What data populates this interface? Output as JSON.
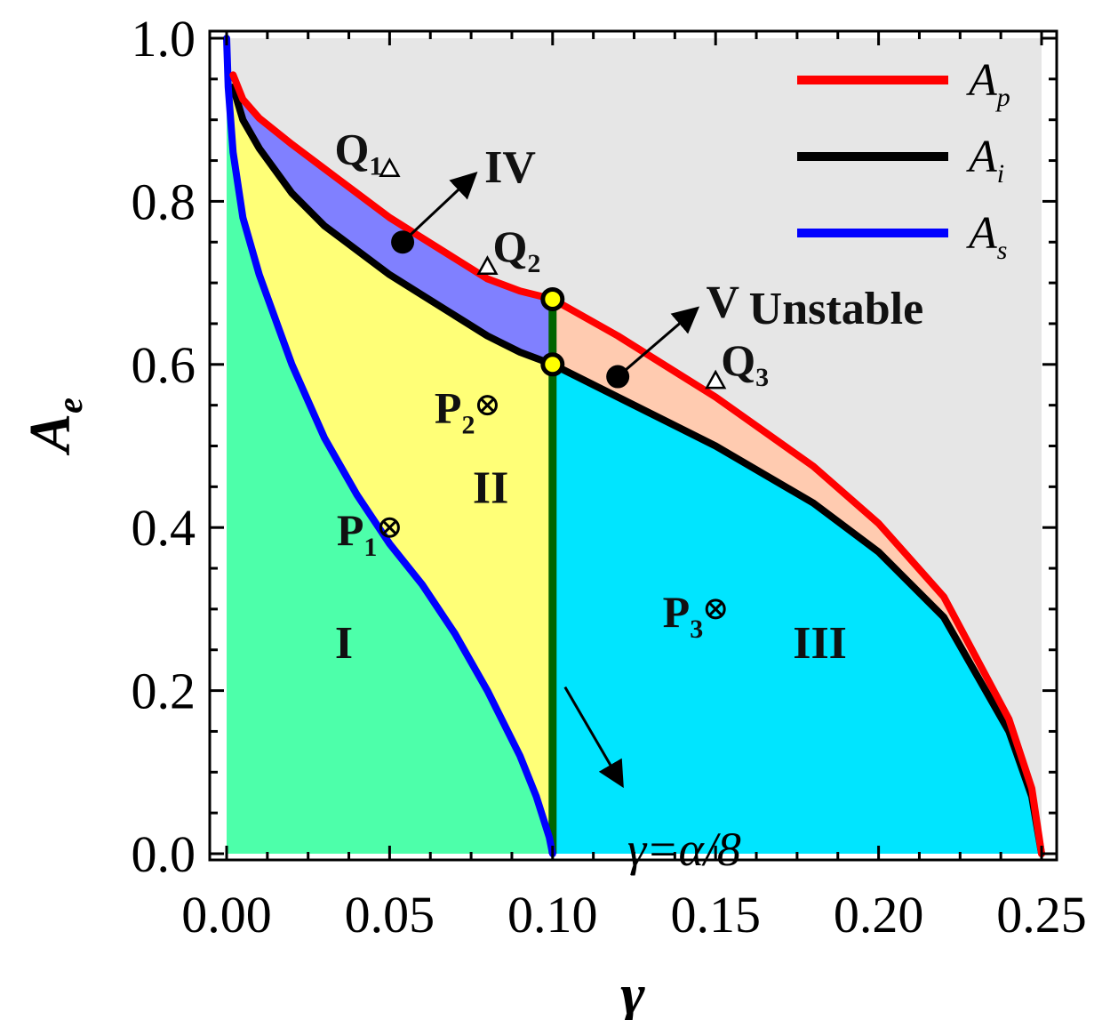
{
  "chart_data": {
    "type": "area",
    "xlabel": "γ",
    "ylabel": "A",
    "ylabel_sub": "e",
    "xlim": [
      0.0,
      0.25
    ],
    "ylim": [
      0.0,
      1.0
    ],
    "xticks": [
      "0.00",
      "0.05",
      "0.10",
      "0.15",
      "0.20",
      "0.25"
    ],
    "xtick_values": [
      0.0,
      0.05,
      0.1,
      0.15,
      0.2,
      0.25
    ],
    "yticks": [
      "0.0",
      "0.2",
      "0.4",
      "0.6",
      "0.8",
      "1.0"
    ],
    "ytick_values": [
      0.0,
      0.2,
      0.4,
      0.6,
      0.8,
      1.0
    ],
    "legend_position": "top-right",
    "series": [
      {
        "name": "A",
        "name_sub": "p",
        "color": "#ff0000",
        "x": [
          0.002,
          0.005,
          0.01,
          0.02,
          0.03,
          0.04,
          0.05,
          0.06,
          0.07,
          0.08,
          0.09,
          0.1,
          0.12,
          0.15,
          0.18,
          0.2,
          0.22,
          0.24,
          0.247,
          0.25
        ],
        "y": [
          0.955,
          0.925,
          0.902,
          0.87,
          0.84,
          0.81,
          0.78,
          0.755,
          0.73,
          0.705,
          0.69,
          0.68,
          0.635,
          0.56,
          0.475,
          0.405,
          0.315,
          0.165,
          0.08,
          0.0
        ]
      },
      {
        "name": "A",
        "name_sub": "i",
        "color": "#000000",
        "x": [
          0.002,
          0.005,
          0.01,
          0.02,
          0.03,
          0.04,
          0.05,
          0.06,
          0.07,
          0.08,
          0.09,
          0.1,
          0.12,
          0.15,
          0.18,
          0.2,
          0.22,
          0.24,
          0.247,
          0.25
        ],
        "y": [
          0.94,
          0.9,
          0.865,
          0.81,
          0.77,
          0.74,
          0.71,
          0.685,
          0.66,
          0.635,
          0.615,
          0.6,
          0.56,
          0.5,
          0.43,
          0.37,
          0.29,
          0.15,
          0.07,
          0.0
        ]
      },
      {
        "name": "A",
        "name_sub": "s",
        "color": "#0000ff",
        "x": [
          0.0,
          0.0005,
          0.002,
          0.005,
          0.01,
          0.02,
          0.03,
          0.04,
          0.05,
          0.06,
          0.07,
          0.08,
          0.09,
          0.095,
          0.099,
          0.1
        ],
        "y": [
          1.0,
          0.94,
          0.86,
          0.78,
          0.71,
          0.6,
          0.51,
          0.44,
          0.38,
          0.33,
          0.27,
          0.2,
          0.12,
          0.07,
          0.02,
          0.0
        ]
      }
    ],
    "vertical_line": {
      "x": 0.1,
      "color": "#006400",
      "label": "γ=α/8"
    },
    "region_colors": {
      "I": "#4dffaa",
      "II": "#ffff77",
      "III": "#00e5ff",
      "IV": "#8080ff",
      "V": "#ffcbb0",
      "Unstable": "#e6e6e6"
    },
    "regions": [
      {
        "label": "I",
        "x": 0.036,
        "y": 0.24
      },
      {
        "label": "II",
        "x": 0.081,
        "y": 0.43
      },
      {
        "label": "III",
        "x": 0.182,
        "y": 0.24
      },
      {
        "label": "Unstable",
        "x": 0.187,
        "y": 0.65
      }
    ],
    "arrow_labels": [
      {
        "label": "IV",
        "from_x": 0.054,
        "from_y": 0.75,
        "x": 0.078,
        "y": 0.845
      },
      {
        "label": "V",
        "from_x": 0.12,
        "from_y": 0.585,
        "x": 0.146,
        "y": 0.68
      }
    ],
    "special_points": [
      {
        "x": 0.1,
        "y": 0.68,
        "fill": "#ffff00"
      },
      {
        "x": 0.1,
        "y": 0.6,
        "fill": "#ffff00"
      }
    ],
    "markers": [
      {
        "label": "P",
        "sub": "1",
        "x": 0.05,
        "y": 0.4,
        "symbol": "otimes"
      },
      {
        "label": "P",
        "sub": "2",
        "x": 0.08,
        "y": 0.55,
        "symbol": "otimes"
      },
      {
        "label": "P",
        "sub": "3",
        "x": 0.15,
        "y": 0.3,
        "symbol": "otimes"
      },
      {
        "label": "Q",
        "sub": "1",
        "x": 0.05,
        "y": 0.84,
        "symbol": "triangle"
      },
      {
        "label": "Q",
        "sub": "2",
        "x": 0.08,
        "y": 0.72,
        "symbol": "triangle"
      },
      {
        "label": "Q",
        "sub": "3",
        "x": 0.15,
        "y": 0.58,
        "symbol": "triangle"
      }
    ],
    "annotation": {
      "text": "γ=α/8",
      "arrow_from_x": 0.1,
      "arrow_from_y": 0.2,
      "x": 0.127,
      "y": 0.095
    }
  }
}
